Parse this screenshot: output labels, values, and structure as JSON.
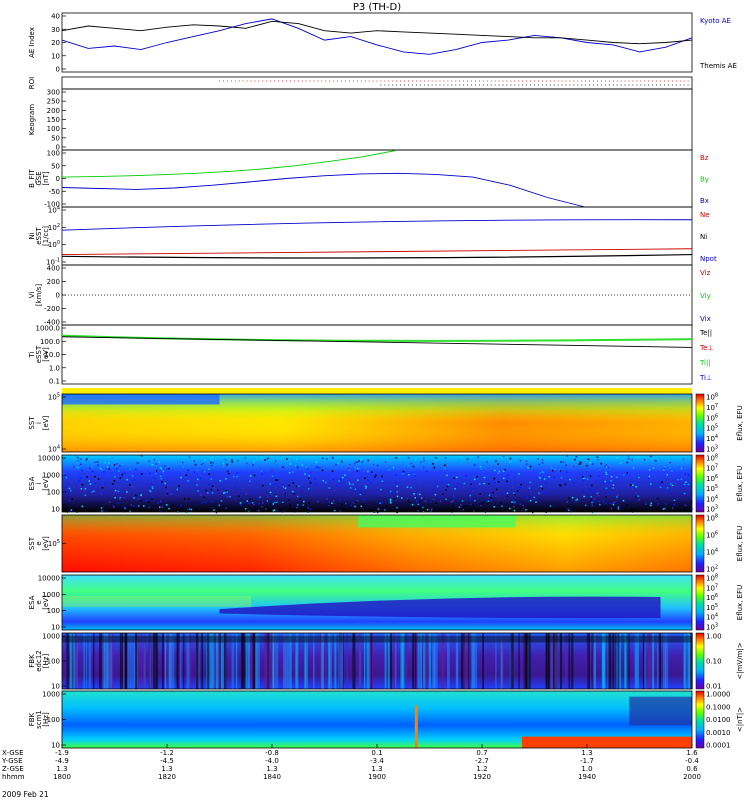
{
  "title": "P3 (TH-D)",
  "date_label": "2009 Feb 21",
  "colors": {
    "black": "#000000",
    "blue": "#0000cc",
    "red": "#cc0000",
    "green": "#00cc00",
    "yellow": "#ffff00"
  },
  "chart_data": {
    "type": "line",
    "x_range": [
      "1800",
      "2000"
    ],
    "x_ticks": [
      "1800",
      "1820",
      "1840",
      "1900",
      "1920",
      "1940",
      "2000"
    ],
    "ephemeris_rows": [
      {
        "label": "X-GSE",
        "values": [
          "-1.9",
          "-1.2",
          "-0.8",
          "0.1",
          "0.7",
          "1.3",
          "1.6"
        ]
      },
      {
        "label": "Y-GSE",
        "values": [
          "-4.9",
          "-4.5",
          "-4.0",
          "-3.4",
          "-2.7",
          "-1.7",
          "-0.4"
        ]
      },
      {
        "label": "Z-GSE",
        "values": [
          "1.3",
          "1.3",
          "1.3",
          "1.3",
          "1.2",
          "1.0",
          "0.6"
        ]
      },
      {
        "label": "hhmm",
        "values": [
          "1800",
          "1820",
          "1840",
          "1900",
          "1920",
          "1940",
          "2000"
        ]
      }
    ],
    "panels": [
      {
        "ylabel": [
          "AE Index"
        ],
        "y_ticks": [
          "40",
          "30",
          "20",
          "10",
          "0"
        ],
        "legend": [
          {
            "text": "Kyoto AE",
            "color": "#0000cc"
          },
          {
            "text": "Themis AE",
            "color": "#000000"
          }
        ],
        "series": [
          {
            "name": "Kyoto AE",
            "color": "#0000cc",
            "y": [
              22,
              15,
              17,
              14,
              20,
              25,
              30,
              36,
              40,
              32,
              22,
              25,
              18,
              12,
              10,
              14,
              20,
              22,
              26,
              24,
              20,
              18,
              12,
              16,
              24
            ]
          },
          {
            "name": "Themis AE",
            "color": "#000000",
            "y": [
              30,
              34,
              32,
              30,
              33,
              35,
              34,
              32,
              38,
              36,
              30,
              28,
              30,
              29,
              28,
              27,
              26,
              25,
              24,
              24,
              22,
              20,
              19,
              20,
              22
            ]
          }
        ],
        "ylim": [
          -5,
          45
        ]
      },
      {
        "ylabel": [
          "ROI"
        ],
        "y_ticks": [],
        "legend": []
      },
      {
        "ylabel": [
          "Keogram"
        ],
        "y_ticks": [
          "300",
          "250",
          "200",
          "150",
          "100",
          "50",
          "0"
        ],
        "legend": []
      },
      {
        "ylabel": [
          "B_FIT",
          "GSE",
          "[nT]"
        ],
        "y_ticks": [
          "100",
          "50",
          "0",
          "-50",
          "-100"
        ],
        "legend": [
          {
            "text": "Bz",
            "color": "#cc0000"
          },
          {
            "text": "By",
            "color": "#00cc00"
          },
          {
            "text": "Bx",
            "color": "#0000cc"
          }
        ],
        "series": [
          {
            "name": "By",
            "color": "#00cc00",
            "y": [
              0,
              2,
              5,
              9,
              14,
              21,
              30,
              42,
              58,
              75,
              98
            ]
          },
          {
            "name": "Bx",
            "color": "#0000cc",
            "y": [
              -38,
              -42,
              -45,
              -40,
              -30,
              -18,
              -5,
              5,
              12,
              14,
              10,
              0,
              -30,
              -75,
              -110
            ]
          }
        ],
        "ylim": [
          -110,
          100
        ]
      },
      {
        "ylabel": [
          "Ni",
          "eSST",
          "[1/cc]"
        ],
        "y_ticks": [
          "10^4",
          "10^2",
          "10^0",
          "10^-1"
        ],
        "legend": [
          {
            "text": "Ne",
            "color": "#cc0000"
          },
          {
            "text": "Ni",
            "color": "#000000"
          },
          {
            "text": "Npot",
            "color": "#0000cc"
          }
        ]
      },
      {
        "ylabel": [
          "Vi",
          "[km/s]"
        ],
        "y_ticks": [
          "400",
          "200",
          "0",
          "-200",
          "-400"
        ],
        "legend": [
          {
            "text": "Viz",
            "color": "#cc0000"
          },
          {
            "text": "Viy",
            "color": "#00cc00"
          },
          {
            "text": "Vix",
            "color": "#0000cc"
          }
        ]
      },
      {
        "ylabel": [
          "Ti",
          "eSST",
          "[eV]"
        ],
        "y_ticks": [
          "1000.0",
          "100.0",
          "10.0",
          "1.0",
          "0.1"
        ],
        "legend": [
          {
            "text": "Te||",
            "color": "#000000"
          },
          {
            "text": "Te⊥",
            "color": "#cc0000"
          },
          {
            "text": "Ti||",
            "color": "#00cc00"
          },
          {
            "text": "Ti⊥",
            "color": "#0000cc"
          }
        ]
      },
      {
        "ylabel": [
          "SST",
          "i",
          "[eV]"
        ],
        "y_ticks": [
          "10^5",
          "10^4"
        ],
        "cbar_label": "Eflux, EFU",
        "cbar_ticks": [
          "10^8",
          "10^7",
          "10^6",
          "10^5",
          "10^4",
          "10^3"
        ]
      },
      {
        "ylabel": [
          "ESA",
          "i",
          "[eV]"
        ],
        "y_ticks": [
          "10000",
          "1000",
          "100",
          "10"
        ],
        "cbar_label": "Eflux, EFU",
        "cbar_ticks": [
          "10^8",
          "10^7",
          "10^6",
          "10^5",
          "10^4",
          "10^3"
        ]
      },
      {
        "ylabel": [
          "SST",
          "e",
          "[eV]"
        ],
        "y_ticks": [
          "10^5"
        ],
        "cbar_label": "Eflux, EFU",
        "cbar_ticks": [
          "10^8",
          "10^6",
          "10^4",
          "10^2"
        ]
      },
      {
        "ylabel": [
          "ESA",
          "e",
          "[eV]"
        ],
        "y_ticks": [
          "10000",
          "1000",
          "100",
          "10"
        ],
        "cbar_label": "Eflux, EFU",
        "cbar_ticks": [
          "10^8",
          "10^7",
          "10^6",
          "10^5",
          "10^4",
          "10^3"
        ]
      },
      {
        "ylabel": [
          "FBK",
          "edc12",
          "[Hz]"
        ],
        "y_ticks": [
          "1000",
          "100",
          "10"
        ],
        "cbar_label": "<|mV/m|>",
        "cbar_ticks": [
          "1.00",
          "0.10",
          "0.01"
        ]
      },
      {
        "ylabel": [
          "FBK",
          "scm1",
          "[Hz]"
        ],
        "y_ticks": [
          "1000",
          "100",
          "10"
        ],
        "cbar_label": "<|nT|>",
        "cbar_ticks": [
          "1.0000",
          "0.1000",
          "0.0100",
          "0.0010",
          "0.0001"
        ]
      }
    ]
  }
}
